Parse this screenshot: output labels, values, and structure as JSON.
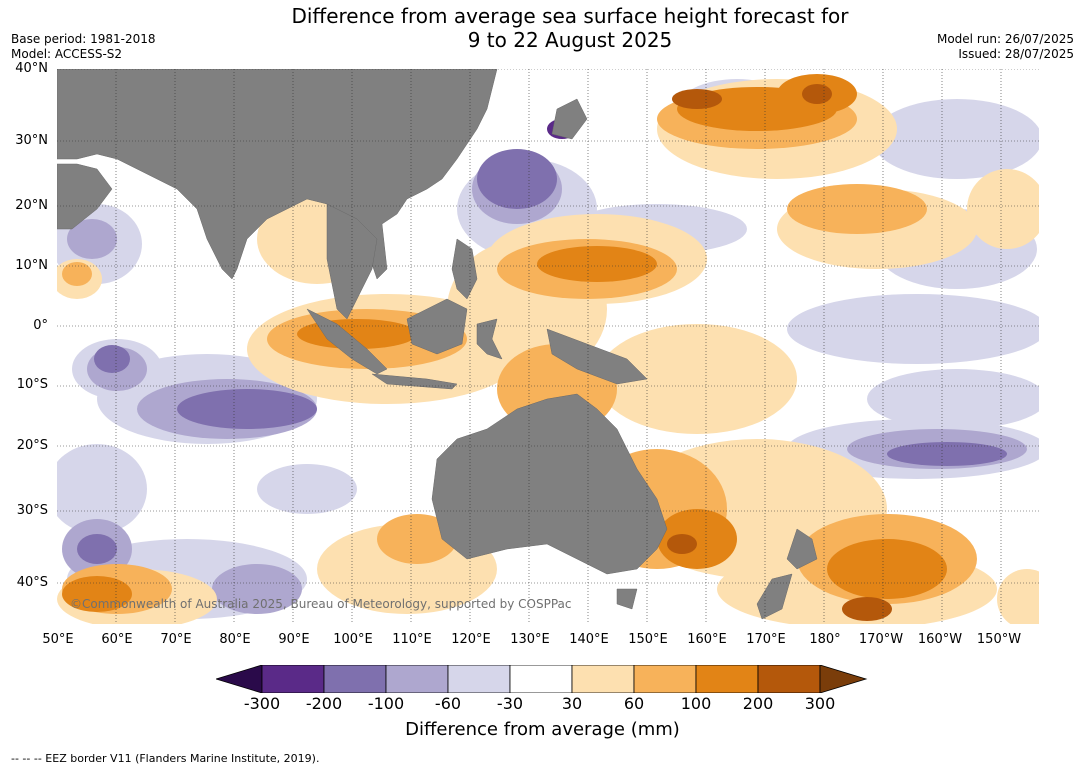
{
  "title": {
    "line1": "Difference from average sea surface height forecast for",
    "line2": "9 to 22 August 2025"
  },
  "meta": {
    "base_period": "Base period: 1981-2018",
    "model": "Model: ACCESS-S2",
    "model_run": "Model run: 26/07/2025",
    "issued": "Issued: 28/07/2025"
  },
  "map": {
    "copyright": "©Commonwealth of Australia 2025, Bureau of Meteorology, supported by COSPPac",
    "land_color": "#808080",
    "lat_labels": [
      "40°N",
      "30°N",
      "20°N",
      "10°N",
      "0°",
      "10°S",
      "20°S",
      "30°S",
      "40°S"
    ],
    "lon_labels": [
      "50°E",
      "60°E",
      "70°E",
      "80°E",
      "90°E",
      "100°E",
      "110°E",
      "120°E",
      "130°E",
      "140°E",
      "150°E",
      "160°E",
      "170°E",
      "180°",
      "170°W",
      "160°W",
      "150°W"
    ]
  },
  "colorbar": {
    "title": "Difference from average (mm)",
    "ticks": [
      "-300",
      "-200",
      "-100",
      "-60",
      "-30",
      "30",
      "60",
      "100",
      "200",
      "300"
    ],
    "colors": [
      "#2a0a4a",
      "#5a2a88",
      "#7f70ae",
      "#aea7cf",
      "#d6d6ea",
      "#ffffff",
      "#fde0b0",
      "#f7b25a",
      "#e28416",
      "#b4580b",
      "#7a3d0a"
    ]
  },
  "footnote": "--  --  -- EEZ border V11 (Flanders Marine Institute, 2019)."
}
